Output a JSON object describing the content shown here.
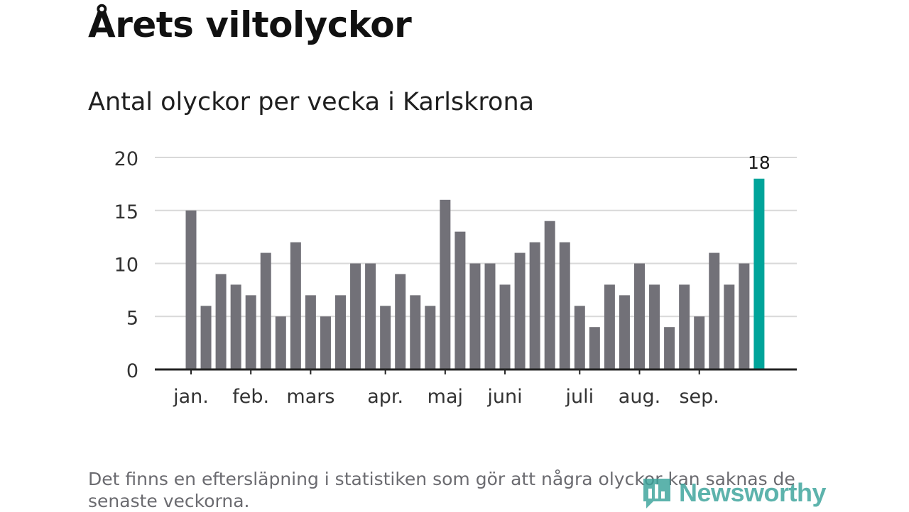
{
  "title": "Årets viltolyckor",
  "subtitle": "Antal olyckor per vecka i Karlskrona",
  "footnote": "Det finns en eftersläpning i statistiken som gör att några olyckor kan saknas de senaste veckorna.",
  "brand": "Newsworthy",
  "colors": {
    "bar": "#727178",
    "highlight": "#00a49a",
    "grid": "#d9d9d9",
    "axis": "#222222",
    "brand": "#3aa39a"
  },
  "chart_data": {
    "type": "bar",
    "title": "Antal olyckor per vecka i Karlskrona",
    "xlabel": "",
    "ylabel": "",
    "ylim": [
      0,
      20
    ],
    "yticks": [
      0,
      5,
      10,
      15,
      20
    ],
    "grid": true,
    "values": [
      15,
      6,
      9,
      8,
      7,
      11,
      5,
      12,
      7,
      5,
      7,
      10,
      10,
      6,
      9,
      7,
      6,
      16,
      13,
      10,
      10,
      8,
      11,
      12,
      14,
      12,
      6,
      4,
      8,
      7,
      10,
      8,
      4,
      8,
      5,
      11,
      8,
      10,
      18
    ],
    "highlight_index": 38,
    "highlight_label": "18",
    "month_labels": [
      {
        "label": "jan.",
        "bar": 0
      },
      {
        "label": "feb.",
        "bar": 4
      },
      {
        "label": "mars",
        "bar": 8
      },
      {
        "label": "apr.",
        "bar": 13
      },
      {
        "label": "maj",
        "bar": 17
      },
      {
        "label": "juni",
        "bar": 21
      },
      {
        "label": "juli",
        "bar": 26
      },
      {
        "label": "aug.",
        "bar": 30
      },
      {
        "label": "sep.",
        "bar": 34
      }
    ]
  }
}
